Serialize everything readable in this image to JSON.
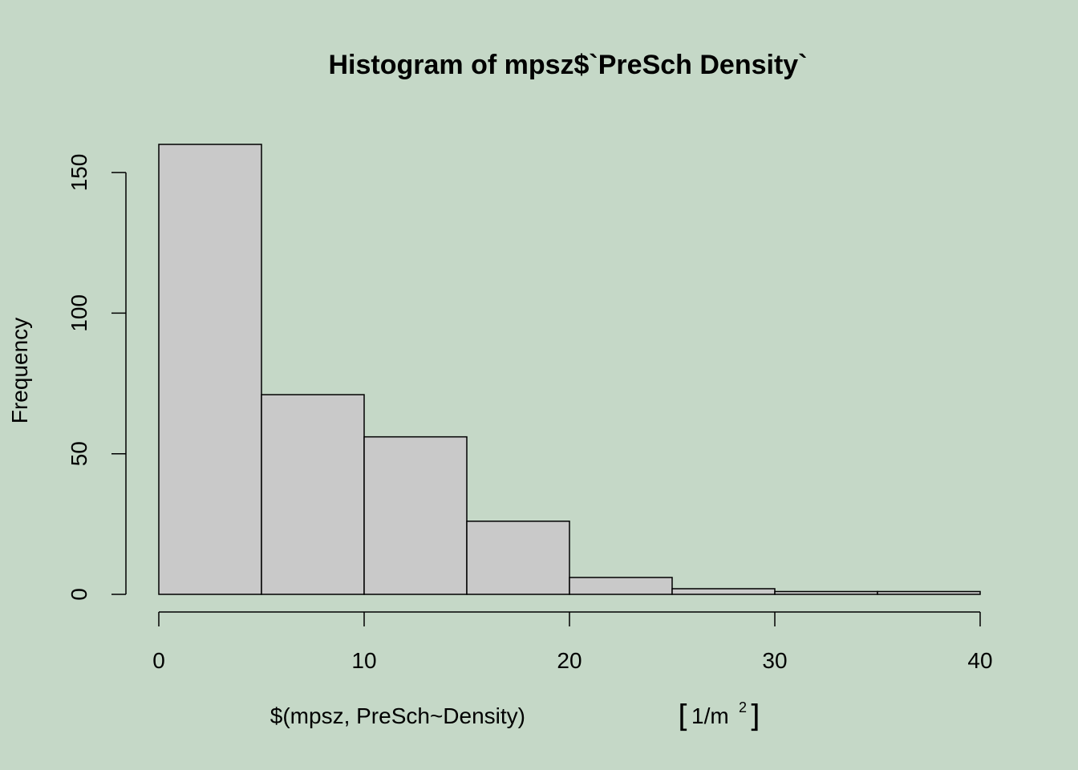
{
  "chart_data": {
    "type": "bar",
    "title": "Histogram of mpsz$`PreSch Density`",
    "xlabel": {
      "main": "$(mpsz, PreSch~Density)",
      "bracket_open": "[",
      "unit": "1/m",
      "unit_sup": "2",
      "bracket_close": "]"
    },
    "ylabel": "Frequency",
    "bins": [
      [
        0,
        5
      ],
      [
        5,
        10
      ],
      [
        10,
        15
      ],
      [
        15,
        20
      ],
      [
        20,
        25
      ],
      [
        25,
        30
      ],
      [
        30,
        35
      ],
      [
        35,
        40
      ]
    ],
    "values": [
      160,
      71,
      56,
      26,
      6,
      2,
      1,
      1
    ],
    "xlim": [
      0,
      40
    ],
    "ylim": [
      0,
      160
    ],
    "xticks": [
      0,
      10,
      20,
      30,
      40
    ],
    "yticks": [
      0,
      50,
      100,
      150
    ],
    "bar_fill": "#C9C9C9",
    "bar_stroke": "#000000",
    "background": "#C5D8C7",
    "grid": false,
    "legend": "none"
  }
}
